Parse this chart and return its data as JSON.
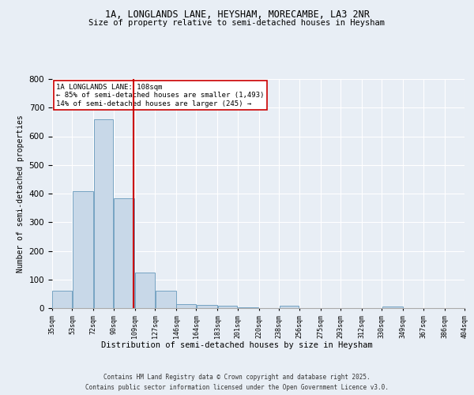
{
  "title1": "1A, LONGLANDS LANE, HEYSHAM, MORECAMBE, LA3 2NR",
  "title2": "Size of property relative to semi-detached houses in Heysham",
  "xlabel": "Distribution of semi-detached houses by size in Heysham",
  "ylabel": "Number of semi-detached properties",
  "annotation_title": "1A LONGLANDS LANE: 108sqm",
  "annotation_line1": "← 85% of semi-detached houses are smaller (1,493)",
  "annotation_line2": "14% of semi-detached houses are larger (245) →",
  "footer1": "Contains HM Land Registry data © Crown copyright and database right 2025.",
  "footer2": "Contains public sector information licensed under the Open Government Licence v3.0.",
  "property_size": 108,
  "bar_color": "#c8d8e8",
  "bar_edge_color": "#6699bb",
  "red_line_color": "#cc0000",
  "background_color": "#e8eef5",
  "grid_color": "#ffffff",
  "bin_edges": [
    35,
    53,
    72,
    90,
    109,
    127,
    146,
    164,
    183,
    201,
    220,
    238,
    256,
    275,
    293,
    312,
    330,
    349,
    367,
    386,
    404
  ],
  "bin_labels": [
    "35sqm",
    "53sqm",
    "72sqm",
    "90sqm",
    "109sqm",
    "127sqm",
    "146sqm",
    "164sqm",
    "183sqm",
    "201sqm",
    "220sqm",
    "238sqm",
    "256sqm",
    "275sqm",
    "293sqm",
    "312sqm",
    "330sqm",
    "349sqm",
    "367sqm",
    "386sqm",
    "404sqm"
  ],
  "bar_heights": [
    60,
    407,
    660,
    383,
    125,
    62,
    15,
    12,
    8,
    3,
    0,
    8,
    0,
    0,
    0,
    0,
    5,
    0,
    0,
    0
  ],
  "ylim": [
    0,
    800
  ],
  "yticks": [
    0,
    100,
    200,
    300,
    400,
    500,
    600,
    700,
    800
  ]
}
